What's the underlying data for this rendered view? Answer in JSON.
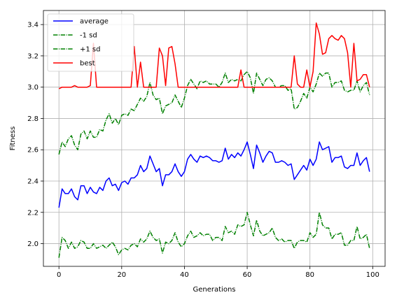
{
  "chart_data": {
    "type": "line",
    "title": "",
    "xlabel": "Generations",
    "ylabel": "Fitness",
    "xlim": [
      -4.95,
      103.95
    ],
    "ylim": [
      1.855,
      3.49
    ],
    "xticks": [
      0,
      20,
      40,
      60,
      80,
      100
    ],
    "yticks": [
      2.0,
      2.2,
      2.4,
      2.6,
      2.8,
      3.0,
      3.2,
      3.4
    ],
    "grid": true,
    "legend_position": "upper-left",
    "series": [
      {
        "name": "average",
        "color": "#0000ff",
        "linestyle": "solid",
        "values": [
          2.23,
          2.35,
          2.32,
          2.32,
          2.35,
          2.3,
          2.28,
          2.37,
          2.37,
          2.32,
          2.36,
          2.33,
          2.32,
          2.36,
          2.34,
          2.4,
          2.42,
          2.37,
          2.38,
          2.34,
          2.39,
          2.4,
          2.38,
          2.42,
          2.42,
          2.44,
          2.5,
          2.46,
          2.48,
          2.56,
          2.51,
          2.46,
          2.48,
          2.37,
          2.44,
          2.44,
          2.46,
          2.51,
          2.46,
          2.43,
          2.46,
          2.54,
          2.57,
          2.54,
          2.52,
          2.56,
          2.55,
          2.56,
          2.55,
          2.53,
          2.53,
          2.52,
          2.53,
          2.61,
          2.54,
          2.57,
          2.55,
          2.58,
          2.56,
          2.6,
          2.65,
          2.57,
          2.48,
          2.63,
          2.58,
          2.52,
          2.56,
          2.59,
          2.58,
          2.52,
          2.52,
          2.53,
          2.52,
          2.5,
          2.51,
          2.41,
          2.44,
          2.47,
          2.5,
          2.47,
          2.54,
          2.5,
          2.54,
          2.65,
          2.6,
          2.61,
          2.62,
          2.52,
          2.55,
          2.55,
          2.56,
          2.49,
          2.48,
          2.5,
          2.5,
          2.58,
          2.5,
          2.53,
          2.55,
          2.46
        ]
      },
      {
        "name": "-1 sd",
        "color": "#008000",
        "linestyle": "dashdot",
        "values": [
          1.91,
          2.04,
          2.02,
          1.97,
          2.01,
          1.97,
          1.98,
          2.02,
          2.01,
          1.97,
          1.97,
          2.0,
          1.97,
          1.98,
          1.99,
          1.97,
          1.99,
          2.01,
          1.98,
          1.93,
          1.96,
          1.97,
          1.96,
          1.99,
          2.0,
          1.98,
          2.03,
          2.01,
          2.03,
          2.08,
          2.04,
          2.02,
          2.03,
          1.94,
          2.01,
          2.0,
          2.02,
          2.07,
          2.01,
          1.98,
          2.0,
          2.05,
          2.08,
          2.04,
          2.05,
          2.07,
          2.05,
          2.06,
          2.06,
          2.02,
          2.04,
          2.04,
          2.02,
          2.11,
          2.07,
          2.08,
          2.06,
          2.12,
          2.11,
          2.12,
          2.2,
          2.12,
          2.05,
          2.15,
          2.08,
          2.05,
          2.06,
          2.07,
          2.1,
          2.04,
          2.02,
          2.03,
          2.01,
          2.02,
          2.02,
          1.97,
          2.01,
          2.02,
          2.02,
          2.01,
          2.07,
          2.04,
          2.06,
          2.2,
          2.12,
          2.1,
          2.1,
          2.03,
          2.06,
          2.06,
          2.07,
          1.99,
          1.99,
          2.02,
          2.02,
          2.11,
          2.03,
          2.04,
          2.06,
          1.97
        ]
      },
      {
        "name": "+1 sd",
        "color": "#008000",
        "linestyle": "dashdot",
        "values": [
          2.57,
          2.65,
          2.62,
          2.67,
          2.69,
          2.63,
          2.6,
          2.7,
          2.72,
          2.67,
          2.72,
          2.68,
          2.68,
          2.73,
          2.72,
          2.79,
          2.83,
          2.77,
          2.8,
          2.76,
          2.82,
          2.83,
          2.82,
          2.86,
          2.85,
          2.89,
          2.93,
          2.91,
          2.94,
          3.03,
          2.95,
          2.92,
          2.93,
          2.83,
          2.88,
          2.89,
          2.9,
          2.95,
          2.91,
          2.87,
          2.93,
          3.01,
          3.05,
          3.02,
          2.99,
          3.04,
          3.03,
          3.04,
          3.02,
          3.02,
          3.02,
          3.0,
          3.03,
          3.09,
          3.03,
          3.05,
          3.04,
          3.05,
          3.04,
          3.08,
          3.1,
          3.06,
          2.96,
          3.09,
          3.05,
          3.01,
          3.05,
          3.06,
          3.04,
          3.0,
          3.0,
          3.01,
          3.01,
          2.98,
          2.99,
          2.86,
          2.87,
          2.91,
          2.96,
          2.93,
          3.0,
          2.97,
          3.02,
          3.09,
          3.07,
          3.09,
          3.09,
          3.0,
          3.03,
          3.03,
          3.04,
          2.98,
          2.97,
          2.98,
          2.98,
          3.04,
          2.97,
          3.01,
          3.03,
          2.95
        ]
      },
      {
        "name": "best",
        "color": "#ff0000",
        "linestyle": "solid",
        "values": [
          2.99,
          3.0,
          3.0,
          3.0,
          3.0,
          3.01,
          3.0,
          3.0,
          3.0,
          3.0,
          3.01,
          3.28,
          3.0,
          3.0,
          3.0,
          3.0,
          3.0,
          3.0,
          3.0,
          3.0,
          3.0,
          3.0,
          3.0,
          3.0,
          3.26,
          3.0,
          3.16,
          3.0,
          3.0,
          3.0,
          3.0,
          3.0,
          3.25,
          3.2,
          3.01,
          3.25,
          3.26,
          3.15,
          3.0,
          3.0,
          3.0,
          3.0,
          3.0,
          3.0,
          3.0,
          3.0,
          3.0,
          3.0,
          3.0,
          3.0,
          3.0,
          3.0,
          3.0,
          3.0,
          3.0,
          3.0,
          3.0,
          3.0,
          3.11,
          3.0,
          3.0,
          3.0,
          3.0,
          3.0,
          3.0,
          3.0,
          3.0,
          3.0,
          3.0,
          3.0,
          3.0,
          3.0,
          3.0,
          3.0,
          3.0,
          3.2,
          3.02,
          3.0,
          3.0,
          3.11,
          3.0,
          3.1,
          3.41,
          3.34,
          3.21,
          3.22,
          3.31,
          3.33,
          3.31,
          3.3,
          3.33,
          3.31,
          3.22,
          3.0,
          3.28,
          3.04,
          3.05,
          3.08,
          3.08,
          3.0
        ]
      }
    ]
  }
}
